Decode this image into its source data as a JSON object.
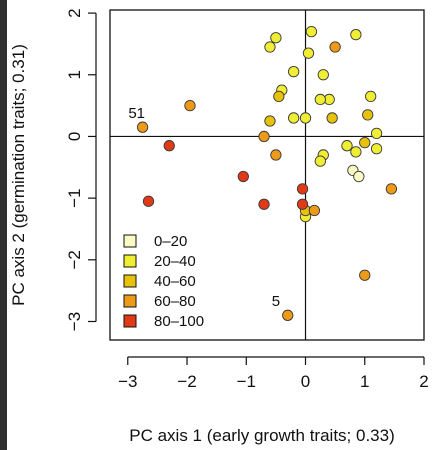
{
  "chart_data": {
    "type": "scatter",
    "title": "",
    "xlabel": "PC axis 1 (early growth traits; 0.33)",
    "ylabel": "PC axis 2 (germination traits; 0.31)",
    "xlim": [
      -3.3,
      2.0
    ],
    "ylim": [
      -3.3,
      2.05
    ],
    "xticks": [
      -3,
      -2,
      -1,
      0,
      1,
      2
    ],
    "yticks": [
      -3,
      -2,
      -1,
      0,
      1,
      2
    ],
    "xtick_labels": [
      "−3",
      "−2",
      "−1",
      "0",
      "1",
      "2"
    ],
    "ytick_labels": [
      "−3",
      "−2",
      "−1",
      "0",
      "1",
      "2"
    ],
    "grid": false,
    "reference_lines": {
      "x": 0,
      "y": 0
    },
    "legend": {
      "placement": "bottom-left",
      "entries": [
        {
          "label": "0–20",
          "color": "#fbf9c4"
        },
        {
          "label": "20–40",
          "color": "#f0ee32"
        },
        {
          "label": "40–60",
          "color": "#e8c20a"
        },
        {
          "label": "60–80",
          "color": "#ed9a18"
        },
        {
          "label": "80–100",
          "color": "#e03a16"
        }
      ]
    },
    "annotations": [
      {
        "text": "51",
        "x": -2.85,
        "y": 0.3
      },
      {
        "text": "5",
        "x": -0.5,
        "y": -2.75
      }
    ],
    "series": [
      {
        "category": 0,
        "points": [
          [
            0.8,
            -0.55
          ],
          [
            0.9,
            -0.65
          ]
        ]
      },
      {
        "category": 1,
        "points": [
          [
            -0.6,
            1.45
          ],
          [
            -0.5,
            1.6
          ],
          [
            0.1,
            1.7
          ],
          [
            0.05,
            1.35
          ],
          [
            0.85,
            1.65
          ],
          [
            0.3,
            1.0
          ],
          [
            -0.2,
            1.05
          ],
          [
            -0.4,
            0.75
          ],
          [
            0.4,
            0.6
          ],
          [
            1.1,
            0.65
          ],
          [
            0.25,
            0.6
          ],
          [
            1.2,
            0.05
          ],
          [
            1.2,
            -0.2
          ],
          [
            0.7,
            -0.15
          ],
          [
            0.3,
            -0.3
          ],
          [
            0.25,
            -0.4
          ],
          [
            0.85,
            -0.25
          ],
          [
            -0.2,
            0.3
          ],
          [
            0.0,
            0.3
          ],
          [
            0.0,
            -1.3
          ]
        ]
      },
      {
        "category": 2,
        "points": [
          [
            -0.45,
            0.65
          ],
          [
            -0.6,
            0.25
          ],
          [
            1.0,
            -0.1
          ],
          [
            0.0,
            -1.2
          ],
          [
            0.45,
            0.3
          ],
          [
            1.05,
            0.35
          ]
        ]
      },
      {
        "category": 3,
        "points": [
          [
            -2.75,
            0.15
          ],
          [
            -1.95,
            0.5
          ],
          [
            -0.7,
            0.0
          ],
          [
            0.5,
            1.45
          ],
          [
            -0.5,
            -0.3
          ],
          [
            1.45,
            -0.85
          ],
          [
            1.0,
            -2.25
          ],
          [
            0.15,
            -1.2
          ],
          [
            -0.3,
            -2.9
          ]
        ]
      },
      {
        "category": 4,
        "points": [
          [
            -2.3,
            -0.15
          ],
          [
            -2.65,
            -1.05
          ],
          [
            -1.05,
            -0.65
          ],
          [
            -0.7,
            -1.1
          ],
          [
            -0.05,
            -0.85
          ],
          [
            -0.05,
            -1.1
          ]
        ]
      }
    ]
  }
}
